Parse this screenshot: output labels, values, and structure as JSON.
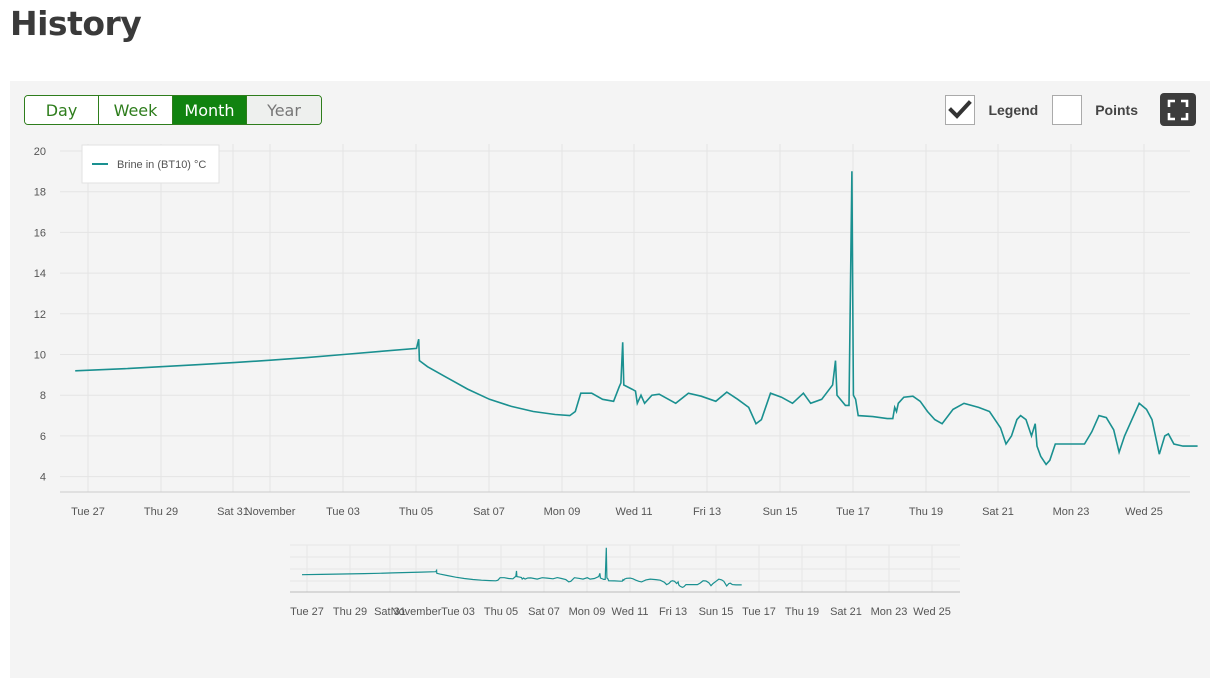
{
  "page": {
    "title": "History"
  },
  "range_buttons": [
    {
      "label": "Day",
      "active": false
    },
    {
      "label": "Week",
      "active": false
    },
    {
      "label": "Month",
      "active": true
    },
    {
      "label": "Year",
      "active": false
    }
  ],
  "toggles": {
    "legend": {
      "label": "Legend",
      "checked": true
    },
    "points": {
      "label": "Points",
      "checked": false
    }
  },
  "colors": {
    "accent": "#118310",
    "series": "#1a9090"
  },
  "icons": {
    "fullscreen": "fullscreen-icon",
    "check": "check-icon"
  },
  "chart_data": {
    "type": "line",
    "ylim": [
      4,
      20
    ],
    "yticks": [
      "20",
      "18",
      "16",
      "14",
      "12",
      "10",
      "8",
      "6",
      "4"
    ],
    "xticks": [
      "Tue 27",
      "Thu 29",
      "Sat 31",
      "November",
      "Tue 03",
      "Thu 05",
      "Sat 07",
      "Mon 09",
      "Wed 11",
      "Fri 13",
      "Sun 15",
      "Tue 17",
      "Thu 19",
      "Sat 21",
      "Mon 23",
      "Wed 25"
    ],
    "grid": true,
    "legend_position": "top-left",
    "series": [
      {
        "name": "Brine in (BT10) °C",
        "points": [
          [
            -0.35,
            9.2
          ],
          [
            1,
            9.3
          ],
          [
            2,
            9.4
          ],
          [
            3,
            9.5
          ],
          [
            4,
            9.6
          ],
          [
            5,
            9.72
          ],
          [
            6,
            9.85
          ],
          [
            7,
            10.0
          ],
          [
            8,
            10.15
          ],
          [
            9,
            10.3
          ],
          [
            9.06,
            10.75
          ],
          [
            9.08,
            9.7
          ],
          [
            9.3,
            9.4
          ],
          [
            9.8,
            8.9
          ],
          [
            10.4,
            8.3
          ],
          [
            11,
            7.8
          ],
          [
            11.6,
            7.45
          ],
          [
            12.2,
            7.2
          ],
          [
            12.8,
            7.05
          ],
          [
            13.2,
            7.0
          ],
          [
            13.35,
            7.2
          ],
          [
            13.5,
            8.1
          ],
          [
            13.8,
            8.1
          ],
          [
            14.1,
            7.8
          ],
          [
            14.4,
            7.7
          ],
          [
            14.55,
            8.4
          ],
          [
            14.6,
            8.6
          ],
          [
            14.65,
            10.6
          ],
          [
            14.68,
            8.5
          ],
          [
            14.9,
            8.3
          ],
          [
            15.0,
            8.2
          ],
          [
            15.05,
            7.6
          ],
          [
            15.15,
            8.0
          ],
          [
            15.25,
            7.6
          ],
          [
            15.45,
            8.0
          ],
          [
            15.65,
            8.05
          ],
          [
            16.1,
            7.6
          ],
          [
            16.45,
            8.1
          ],
          [
            16.8,
            7.95
          ],
          [
            17.2,
            7.7
          ],
          [
            17.5,
            8.15
          ],
          [
            17.8,
            7.8
          ],
          [
            18.1,
            7.4
          ],
          [
            18.3,
            6.6
          ],
          [
            18.45,
            6.8
          ],
          [
            18.7,
            8.1
          ],
          [
            19.0,
            7.9
          ],
          [
            19.3,
            7.6
          ],
          [
            19.6,
            8.1
          ],
          [
            19.8,
            7.6
          ],
          [
            20.1,
            7.8
          ],
          [
            20.4,
            8.5
          ],
          [
            20.48,
            9.7
          ],
          [
            20.52,
            8.0
          ],
          [
            20.75,
            7.5
          ],
          [
            20.85,
            7.5
          ],
          [
            20.93,
            19.0
          ],
          [
            20.97,
            8.0
          ],
          [
            21.03,
            7.8
          ],
          [
            21.1,
            7.0
          ],
          [
            21.5,
            6.95
          ],
          [
            21.9,
            6.85
          ],
          [
            22.05,
            6.85
          ],
          [
            22.1,
            7.4
          ],
          [
            22.15,
            7.2
          ],
          [
            22.2,
            7.6
          ],
          [
            22.35,
            7.9
          ],
          [
            22.6,
            7.95
          ],
          [
            22.8,
            7.7
          ],
          [
            23.0,
            7.2
          ],
          [
            23.2,
            6.8
          ],
          [
            23.4,
            6.6
          ],
          [
            23.7,
            7.3
          ],
          [
            24.0,
            7.6
          ],
          [
            24.4,
            7.4
          ],
          [
            24.7,
            7.2
          ],
          [
            25.0,
            6.4
          ],
          [
            25.15,
            5.6
          ],
          [
            25.3,
            6.0
          ],
          [
            25.45,
            6.8
          ],
          [
            25.55,
            7.0
          ],
          [
            25.7,
            6.8
          ],
          [
            25.85,
            6.0
          ],
          [
            25.95,
            6.6
          ],
          [
            26.0,
            5.5
          ],
          [
            26.1,
            5.0
          ],
          [
            26.25,
            4.6
          ],
          [
            26.35,
            4.8
          ],
          [
            26.5,
            5.6
          ],
          [
            27.0,
            5.6
          ],
          [
            27.3,
            5.6
          ],
          [
            27.5,
            6.2
          ],
          [
            27.7,
            7.0
          ],
          [
            27.9,
            6.9
          ],
          [
            28.1,
            6.3
          ],
          [
            28.25,
            5.2
          ],
          [
            28.4,
            6.0
          ],
          [
            28.6,
            6.8
          ],
          [
            28.8,
            7.6
          ],
          [
            29.0,
            7.3
          ],
          [
            29.15,
            6.8
          ],
          [
            29.35,
            5.1
          ],
          [
            29.5,
            6.0
          ],
          [
            29.6,
            6.1
          ],
          [
            29.75,
            5.6
          ],
          [
            30.0,
            5.5
          ],
          [
            30.4,
            5.5
          ]
        ]
      }
    ]
  }
}
